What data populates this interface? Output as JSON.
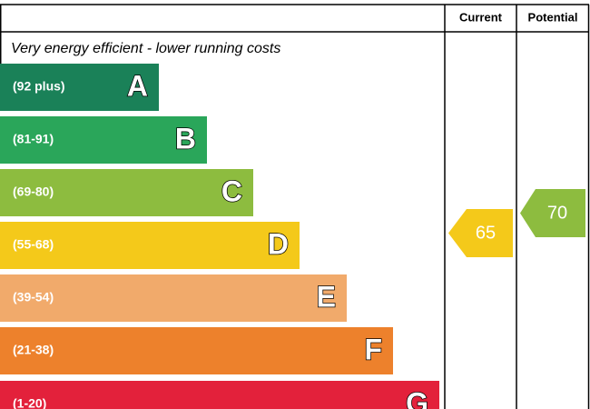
{
  "header": {
    "current": "Current",
    "potential": "Potential"
  },
  "top_text": "Very energy efficient - lower running costs",
  "bands": [
    {
      "range": "(92 plus)",
      "letter": "A",
      "color": "#1a8158"
    },
    {
      "range": "(81-91)",
      "letter": "B",
      "color": "#2aa65a"
    },
    {
      "range": "(69-80)",
      "letter": "C",
      "color": "#8dbc3f"
    },
    {
      "range": "(55-68)",
      "letter": "D",
      "color": "#f4c91a"
    },
    {
      "range": "(39-54)",
      "letter": "E",
      "color": "#f1aa6b"
    },
    {
      "range": "(21-38)",
      "letter": "F",
      "color": "#ed812c"
    },
    {
      "range": "(1-20)",
      "letter": "G",
      "color": "#e3213b"
    }
  ],
  "current": {
    "value": 65,
    "color": "#f4c91a"
  },
  "potential": {
    "value": 70,
    "color": "#8dbc3f"
  }
}
